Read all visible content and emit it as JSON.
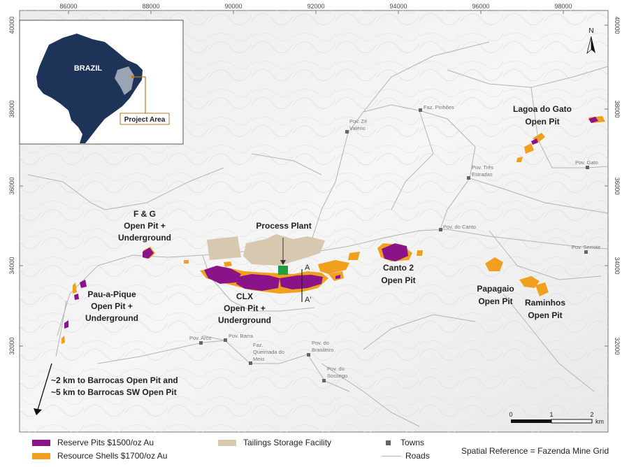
{
  "map": {
    "coordinates": {
      "x_ticks": [
        "86000",
        "88000",
        "90000",
        "92000",
        "94000",
        "96000",
        "98000"
      ],
      "y_ticks": [
        "40000",
        "38000",
        "36000",
        "34000",
        "32000"
      ]
    },
    "north_arrow_label": "N",
    "inset": {
      "country": "BRAZIL",
      "project_label": "Project Area"
    },
    "deposits": {
      "fg": [
        "F & G",
        "Open Pit +",
        "Underground"
      ],
      "pau": [
        "Pau-a-Pique",
        "Open Pit +",
        "Underground"
      ],
      "clx": [
        "CLX",
        "Open Pit +",
        "Underground"
      ],
      "plant": "Process Plant",
      "canto2": [
        "Canto 2",
        "Open Pit"
      ],
      "lagoa": [
        "Lagoa do Gato",
        "Open Pit"
      ],
      "papagaio": [
        "Papagaio",
        "Open Pit"
      ],
      "raminhos": [
        "Raminhos",
        "Open Pit"
      ],
      "barrocas": [
        "~2 km to Barrocas Open Pit and",
        "~5 km to Barrocas SW Open Pit"
      ]
    },
    "section": {
      "a": "A",
      "a_prime": "A'"
    },
    "towns": {
      "pinhoes": [
        "Faz. Pinhões"
      ],
      "ze_valerio": [
        "Pov. Zé",
        "Valério"
      ],
      "tres_estradas": [
        "Pov. Três",
        "Estradas"
      ],
      "gato": [
        "Pov. Gato"
      ],
      "canto": [
        "Pov. do Canto"
      ],
      "serrote": [
        "Pov. Serrote"
      ],
      "arco": [
        "Pov. Arco"
      ],
      "barra": [
        "Pov. Barra"
      ],
      "queimada": [
        "Faz.",
        "Queimada do",
        "Meio"
      ],
      "brasileiro": [
        "Pov. do",
        "Brasileiro"
      ],
      "sossego": [
        "Pov. do",
        "Sossego"
      ]
    },
    "scale": {
      "t0": "0",
      "t1": "1",
      "t2": "2",
      "unit": "km"
    },
    "colors": {
      "reserve": "#8b1389",
      "resource": "#f0a01e",
      "tailings": "#d8c8b0",
      "plant": "#1e9e3c",
      "inset_land": "#1e3358",
      "project_area": "#9aa4b4",
      "leader": "#b97a24"
    }
  },
  "legend": {
    "reserve": "Reserve Pits $1500/oz Au",
    "resource": "Resource Shells $1700/oz Au",
    "tailings": "Tailings Storage Facility",
    "towns": "Towns",
    "roads": "Roads",
    "spatial_reference": "Spatial Reference = Fazenda Mine Grid"
  }
}
